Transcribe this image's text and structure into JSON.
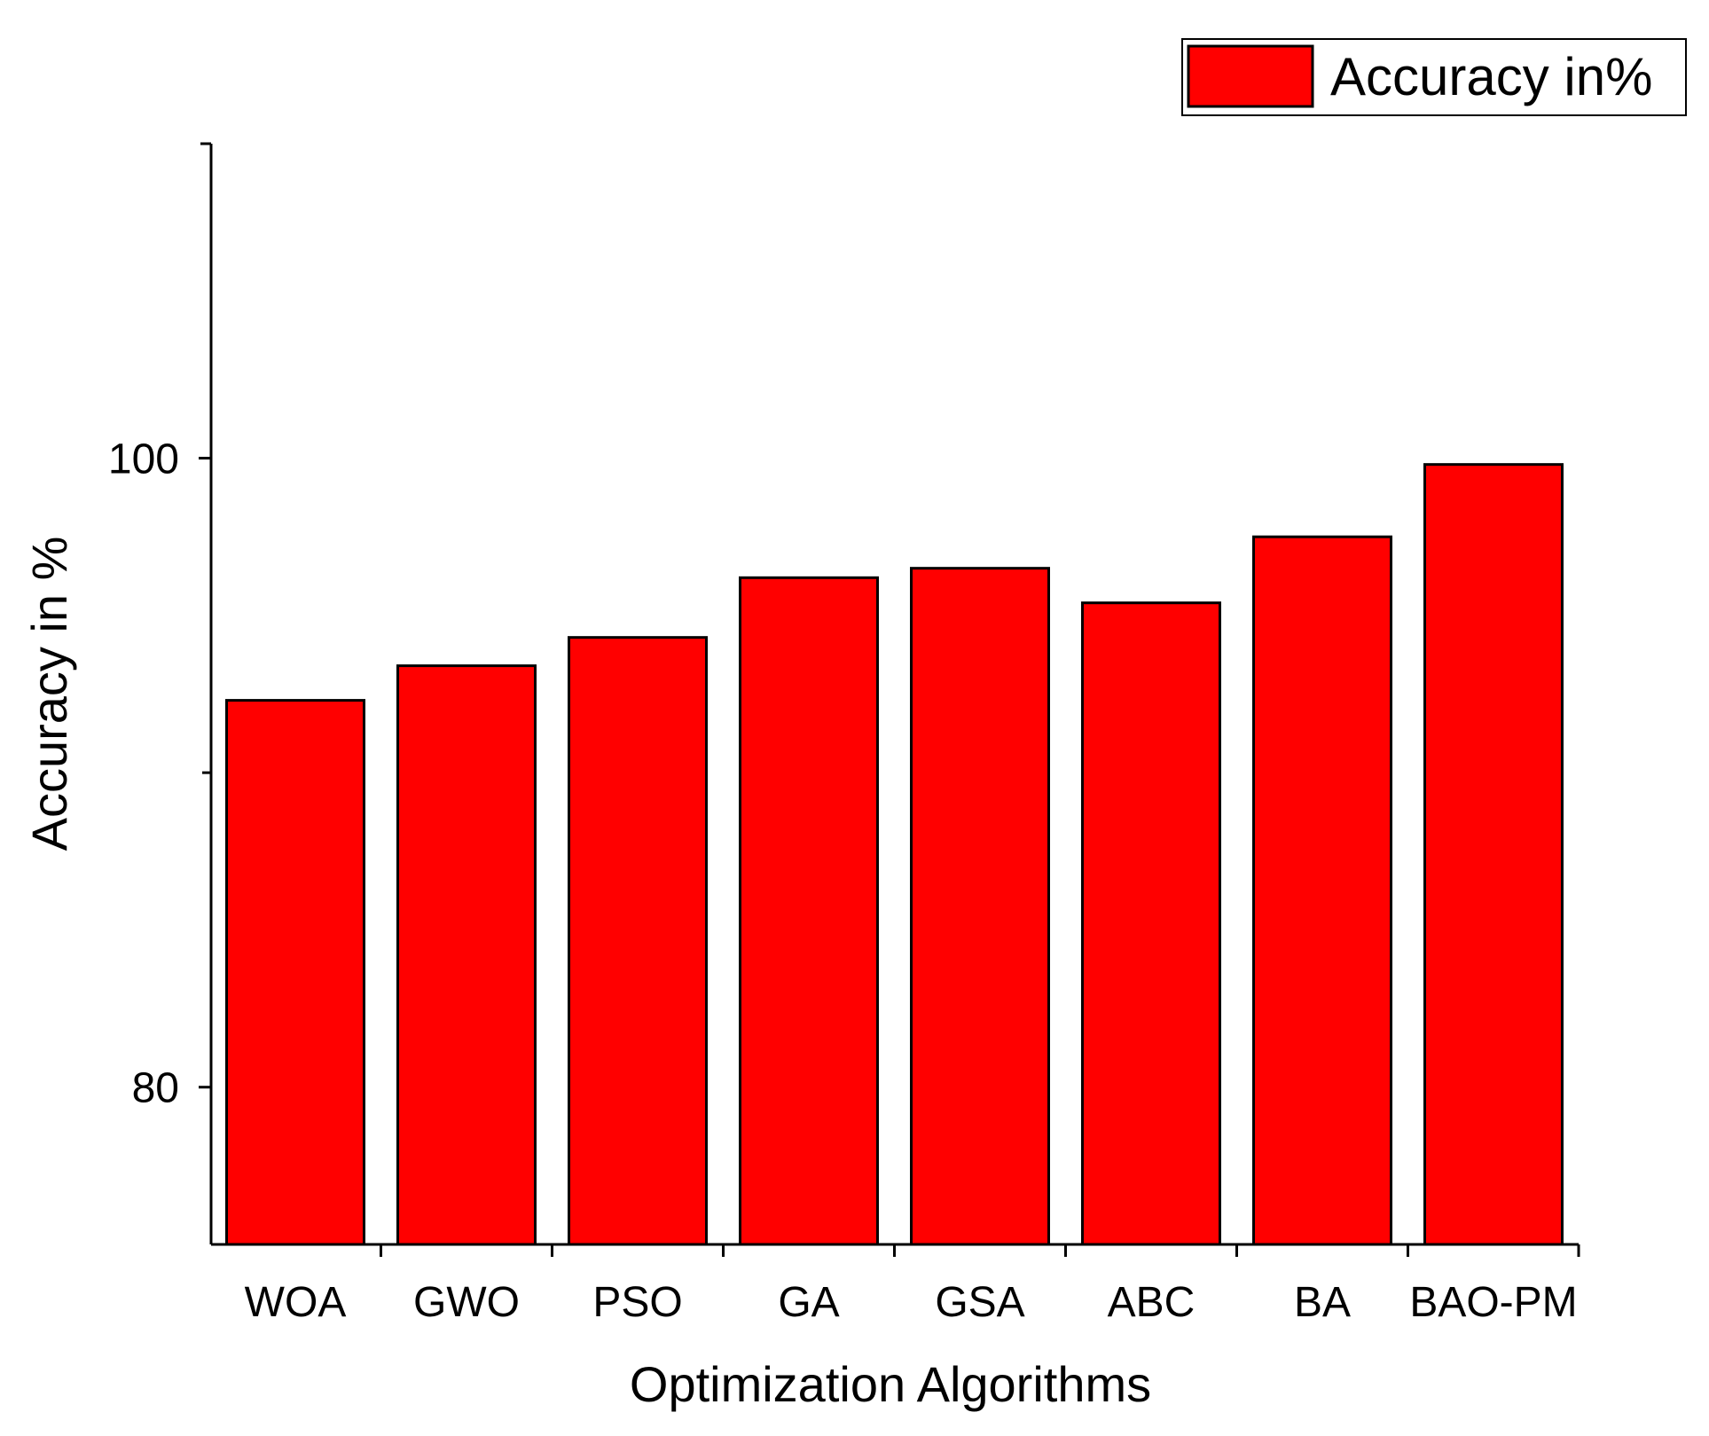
{
  "chart_data": {
    "type": "bar",
    "categories": [
      "WOA",
      "GWO",
      "PSO",
      "GA",
      "GSA",
      "ABC",
      "BA",
      "BAO-PM"
    ],
    "values": [
      92.3,
      93.4,
      94.3,
      96.2,
      96.5,
      95.4,
      97.5,
      99.8
    ],
    "xlabel": "Optimization Algorithms",
    "ylabel": "Accuracy in %",
    "ylim": [
      75,
      110
    ],
    "yticks": [
      80,
      100
    ],
    "minor_yticks": [
      90
    ],
    "legend": {
      "label": "Accuracy in%",
      "placement": "top-right"
    },
    "grid": false,
    "bar_color": "#ff0000",
    "bar_edge_color": "#000000"
  }
}
